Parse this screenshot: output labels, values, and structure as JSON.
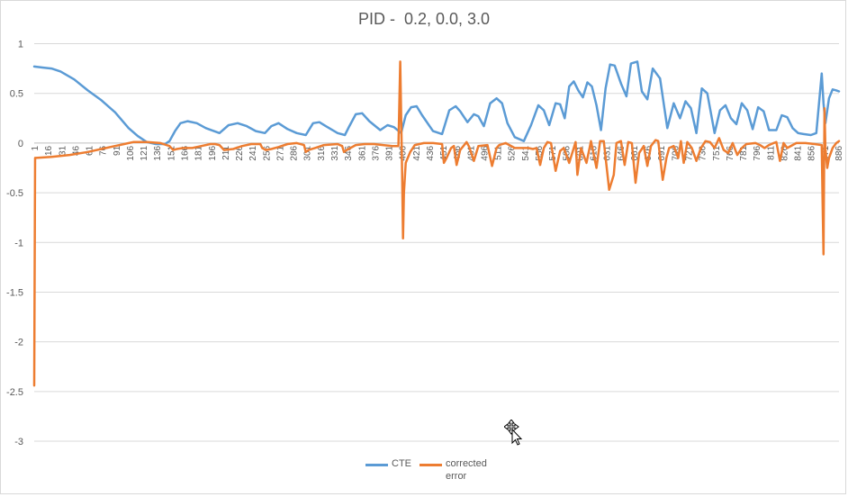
{
  "chart_data": {
    "type": "line",
    "title": "PID -  0.2, 0.0, 3.0",
    "xlabel": "",
    "ylabel": "",
    "ylim": [
      -3,
      1
    ],
    "yticks": [
      "1",
      "0.5",
      "0",
      "-0.5",
      "-1",
      "-1.5",
      "-2",
      "-2.5",
      "-3"
    ],
    "xtick_labels": [
      "1",
      "16",
      "31",
      "46",
      "61",
      "76",
      "91",
      "106",
      "121",
      "136",
      "151",
      "166",
      "181",
      "196",
      "211",
      "226",
      "241",
      "256",
      "271",
      "286",
      "301",
      "316",
      "331",
      "346",
      "361",
      "376",
      "391",
      "406",
      "421",
      "436",
      "451",
      "466",
      "481",
      "496",
      "511",
      "526",
      "541",
      "556",
      "571",
      "586",
      "601",
      "616",
      "631",
      "646",
      "661",
      "676",
      "691",
      "706",
      "721",
      "736",
      "751",
      "766",
      "781",
      "796",
      "811",
      "826",
      "841",
      "856",
      "871",
      "886"
    ],
    "grid": true,
    "legend_position": "bottom",
    "series": [
      {
        "name": "CTE",
        "color": "#5b9bd5",
        "x": [
          1,
          10,
          20,
          30,
          45,
          60,
          75,
          90,
          105,
          115,
          125,
          135,
          145,
          150,
          156,
          162,
          170,
          180,
          190,
          205,
          215,
          225,
          235,
          245,
          255,
          262,
          270,
          280,
          290,
          300,
          308,
          315,
          322,
          335,
          343,
          348,
          355,
          362,
          370,
          382,
          390,
          397,
          405,
          410,
          416,
          422,
          428,
          440,
          450,
          458,
          465,
          470,
          478,
          485,
          490,
          496,
          503,
          510,
          516,
          522,
          530,
          540,
          548,
          556,
          562,
          568,
          575,
          580,
          585,
          590,
          595,
          600,
          605,
          610,
          615,
          620,
          625,
          630,
          635,
          640,
          647,
          653,
          658,
          665,
          670,
          676,
          682,
          690,
          698,
          705,
          712,
          718,
          724,
          730,
          736,
          742,
          750,
          756,
          762,
          768,
          774,
          780,
          786,
          792,
          798,
          804,
          810,
          818,
          824,
          830,
          836,
          842,
          848,
          856,
          862,
          868,
          870,
          872,
          876,
          880,
          884,
          887
        ],
        "values": [
          0.77,
          0.76,
          0.75,
          0.72,
          0.64,
          0.53,
          0.43,
          0.31,
          0.15,
          0.07,
          0.01,
          -0.01,
          -0.01,
          0.02,
          0.12,
          0.2,
          0.22,
          0.2,
          0.15,
          0.1,
          0.18,
          0.2,
          0.17,
          0.12,
          0.1,
          0.17,
          0.2,
          0.14,
          0.1,
          0.08,
          0.2,
          0.21,
          0.17,
          0.1,
          0.08,
          0.17,
          0.29,
          0.3,
          0.22,
          0.13,
          0.18,
          0.16,
          0.1,
          0.28,
          0.36,
          0.37,
          0.28,
          0.12,
          0.09,
          0.33,
          0.37,
          0.32,
          0.21,
          0.29,
          0.27,
          0.17,
          0.4,
          0.45,
          0.4,
          0.2,
          0.06,
          0.02,
          0.18,
          0.38,
          0.33,
          0.18,
          0.4,
          0.39,
          0.25,
          0.57,
          0.62,
          0.53,
          0.46,
          0.61,
          0.57,
          0.38,
          0.13,
          0.55,
          0.79,
          0.78,
          0.6,
          0.47,
          0.8,
          0.82,
          0.52,
          0.44,
          0.75,
          0.65,
          0.15,
          0.4,
          0.25,
          0.42,
          0.35,
          0.1,
          0.55,
          0.5,
          0.1,
          0.33,
          0.38,
          0.25,
          0.19,
          0.4,
          0.33,
          0.14,
          0.36,
          0.32,
          0.13,
          0.13,
          0.28,
          0.26,
          0.15,
          0.1,
          0.09,
          0.08,
          0.1,
          0.7,
          0.4,
          0.2,
          0.45,
          0.54,
          0.53,
          0.52
        ]
      },
      {
        "name": "corrected error",
        "color": "#ed7d31",
        "x": [
          1,
          2,
          3,
          20,
          40,
          60,
          80,
          100,
          110,
          125,
          140,
          150,
          154,
          158,
          165,
          175,
          185,
          195,
          200,
          205,
          210,
          220,
          230,
          240,
          250,
          252,
          256,
          262,
          270,
          280,
          290,
          298,
          300,
          303,
          310,
          320,
          335,
          340,
          342,
          345,
          355,
          365,
          375,
          385,
          395,
          402,
          404,
          406,
          407,
          408,
          410,
          415,
          420,
          430,
          440,
          450,
          452,
          455,
          460,
          463,
          466,
          470,
          477,
          480,
          485,
          490,
          500,
          505,
          510,
          513,
          520,
          530,
          545,
          550,
          554,
          558,
          562,
          566,
          570,
          575,
          580,
          584,
          590,
          597,
          599,
          603,
          609,
          614,
          620,
          624,
          628,
          634,
          639,
          642,
          647,
          651,
          655,
          659,
          663,
          667,
          672,
          676,
          680,
          685,
          688,
          693,
          697,
          700,
          705,
          710,
          713,
          716,
          720,
          725,
          730,
          735,
          740,
          745,
          750,
          755,
          760,
          765,
          770,
          775,
          780,
          785,
          795,
          800,
          805,
          810,
          815,
          818,
          822,
          826,
          830,
          840,
          850,
          860,
          868,
          869,
          870,
          871,
          872,
          874,
          876,
          880,
          884,
          887
        ],
        "values": [
          -2.44,
          -0.15,
          -0.15,
          -0.14,
          -0.12,
          -0.09,
          -0.05,
          -0.01,
          0.01,
          0.01,
          0.0,
          -0.03,
          -0.07,
          -0.06,
          -0.05,
          -0.05,
          -0.03,
          -0.01,
          -0.01,
          -0.02,
          -0.07,
          -0.06,
          -0.03,
          -0.01,
          -0.01,
          -0.05,
          -0.07,
          -0.06,
          -0.04,
          -0.01,
          0.0,
          -0.02,
          -0.09,
          -0.07,
          -0.05,
          -0.02,
          -0.01,
          -0.03,
          -0.09,
          -0.07,
          -0.02,
          -0.01,
          -0.01,
          -0.02,
          -0.03,
          -0.03,
          0.82,
          -0.3,
          -0.96,
          -0.5,
          -0.2,
          -0.09,
          -0.02,
          0.0,
          0.0,
          -0.01,
          -0.2,
          -0.15,
          -0.05,
          -0.03,
          -0.22,
          -0.07,
          0.01,
          -0.04,
          -0.18,
          -0.03,
          -0.02,
          -0.23,
          -0.05,
          -0.02,
          0.0,
          -0.05,
          -0.05,
          -0.06,
          -0.05,
          -0.22,
          -0.05,
          0.01,
          0.0,
          -0.28,
          -0.08,
          -0.05,
          -0.2,
          0.01,
          -0.32,
          -0.05,
          -0.2,
          0.02,
          -0.25,
          0.02,
          0.02,
          -0.47,
          -0.32,
          0.0,
          0.02,
          -0.22,
          0.01,
          0.0,
          -0.4,
          -0.1,
          -0.03,
          -0.23,
          -0.03,
          0.03,
          0.02,
          -0.37,
          -0.15,
          -0.05,
          -0.03,
          -0.15,
          0.02,
          -0.2,
          0.01,
          -0.05,
          -0.18,
          -0.05,
          0.02,
          0.01,
          -0.05,
          0.05,
          -0.07,
          -0.1,
          0.0,
          -0.12,
          -0.05,
          -0.01,
          0.0,
          -0.02,
          -0.05,
          -0.02,
          0.0,
          0.01,
          -0.18,
          0.0,
          -0.05,
          0.0,
          0.0,
          -0.01,
          -0.02,
          -0.6,
          -1.12,
          0.35,
          -0.05,
          -0.25,
          -0.15,
          -0.05,
          0.0,
          0.02
        ]
      }
    ]
  },
  "legend": {
    "cte_label": "CTE",
    "corrected_label": "corrected",
    "corrected_label_2": "error"
  }
}
